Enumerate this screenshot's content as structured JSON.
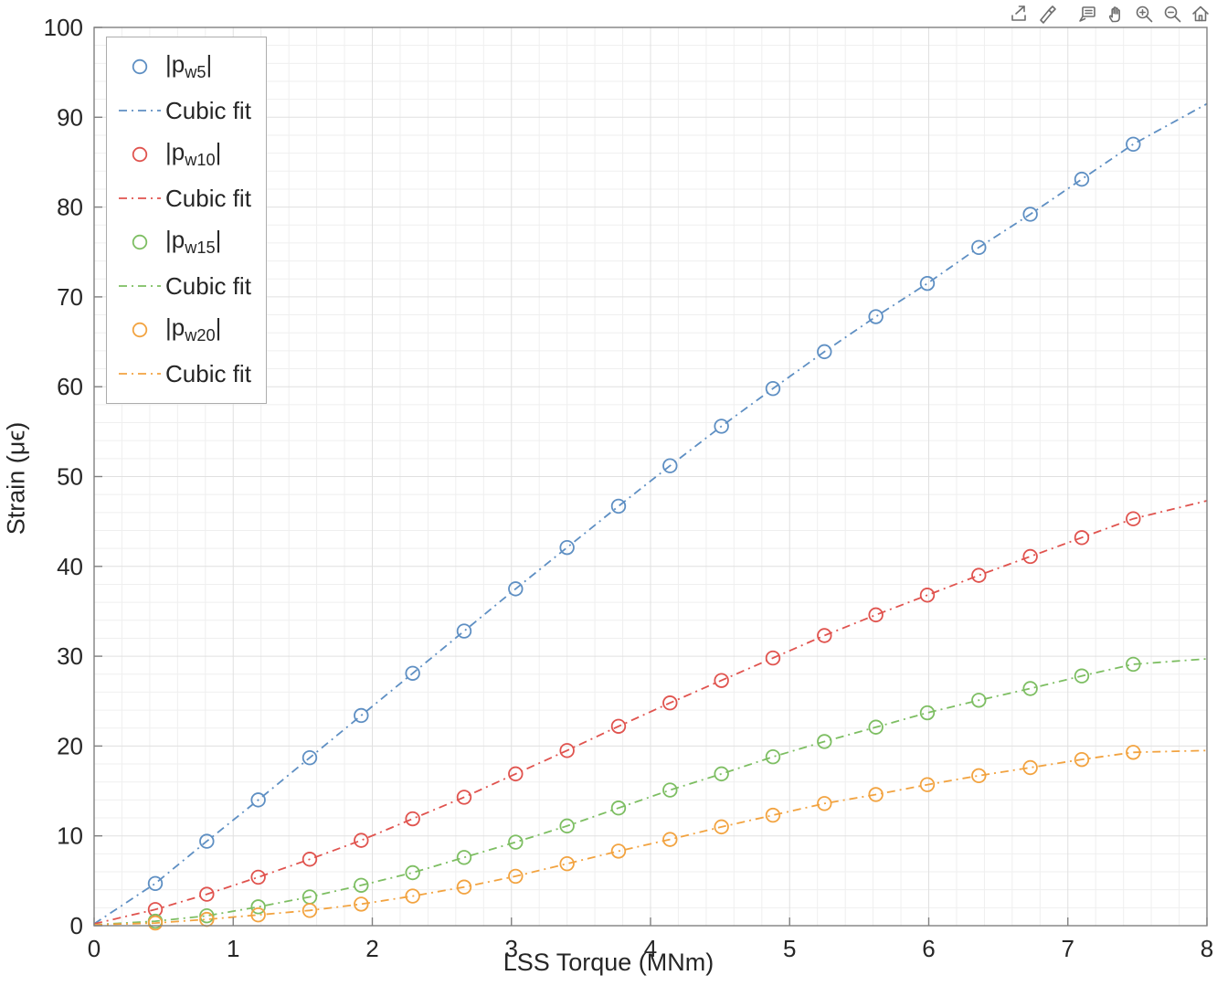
{
  "toolbar": {
    "icons": [
      "export-icon",
      "edit-plot-icon",
      "datatips-icon",
      "pan-icon",
      "zoom-in-icon",
      "zoom-out-icon",
      "home-icon"
    ]
  },
  "chart_data": {
    "type": "scatter",
    "title": "",
    "xlabel": "LSS Torque (MNm)",
    "ylabel": "Strain (μϵ)",
    "xlim": [
      0,
      8
    ],
    "ylim": [
      0,
      100
    ],
    "xticks": [
      0,
      1,
      2,
      3,
      4,
      5,
      6,
      7,
      8
    ],
    "yticks": [
      0,
      10,
      20,
      30,
      40,
      50,
      60,
      70,
      80,
      90,
      100
    ],
    "grid": "major+minor",
    "minor_x_step": 0.2,
    "minor_y_step": 2,
    "legend_position": "northwest",
    "x": [
      0.44,
      0.81,
      1.18,
      1.55,
      1.92,
      2.29,
      2.66,
      3.03,
      3.4,
      3.77,
      4.14,
      4.51,
      4.88,
      5.25,
      5.62,
      5.99,
      6.36,
      6.73,
      7.1,
      7.47
    ],
    "series": [
      {
        "marker_label_pre": "|p",
        "marker_label_sub": "w5",
        "marker_label_post": "|",
        "fit_label": "Cubic fit",
        "color": "#5E8FC3",
        "values": [
          4.7,
          9.4,
          14.0,
          18.7,
          23.4,
          28.1,
          32.8,
          37.5,
          42.1,
          46.7,
          51.2,
          55.6,
          59.8,
          63.9,
          67.8,
          71.5,
          75.5,
          79.2,
          83.1,
          87.0
        ],
        "fit_start": 0.2,
        "fit_end": 91.5
      },
      {
        "marker_label_pre": "|p",
        "marker_label_sub": "w10",
        "marker_label_post": "|",
        "fit_label": "Cubic fit",
        "color": "#E0534E",
        "values": [
          1.8,
          3.5,
          5.4,
          7.4,
          9.5,
          11.9,
          14.3,
          16.9,
          19.5,
          22.2,
          24.8,
          27.3,
          29.8,
          32.3,
          34.6,
          36.8,
          39.0,
          41.1,
          43.2,
          45.3
        ],
        "fit_start": 0.2,
        "fit_end": 47.3
      },
      {
        "marker_label_pre": "|p",
        "marker_label_sub": "w15",
        "marker_label_post": "|",
        "fit_label": "Cubic fit",
        "color": "#7DBE62",
        "values": [
          0.5,
          1.1,
          2.1,
          3.2,
          4.5,
          5.9,
          7.6,
          9.3,
          11.1,
          13.1,
          15.1,
          16.9,
          18.8,
          20.5,
          22.1,
          23.7,
          25.1,
          26.4,
          27.8,
          29.1
        ],
        "fit_start": 0.1,
        "fit_end": 29.7
      },
      {
        "marker_label_pre": "|p",
        "marker_label_sub": "w20",
        "marker_label_post": "|",
        "fit_label": "Cubic fit",
        "color": "#F2A340",
        "values": [
          0.3,
          0.7,
          1.2,
          1.7,
          2.4,
          3.3,
          4.3,
          5.5,
          6.9,
          8.3,
          9.6,
          11.0,
          12.3,
          13.6,
          14.6,
          15.7,
          16.7,
          17.6,
          18.5,
          19.3
        ],
        "fit_start": 0.1,
        "fit_end": 19.5
      }
    ],
    "colors": {
      "axis_box": "#808080",
      "tick_text": "#262626",
      "grid_major": "#e0e0e0",
      "grid_minor": "#efefef"
    }
  }
}
